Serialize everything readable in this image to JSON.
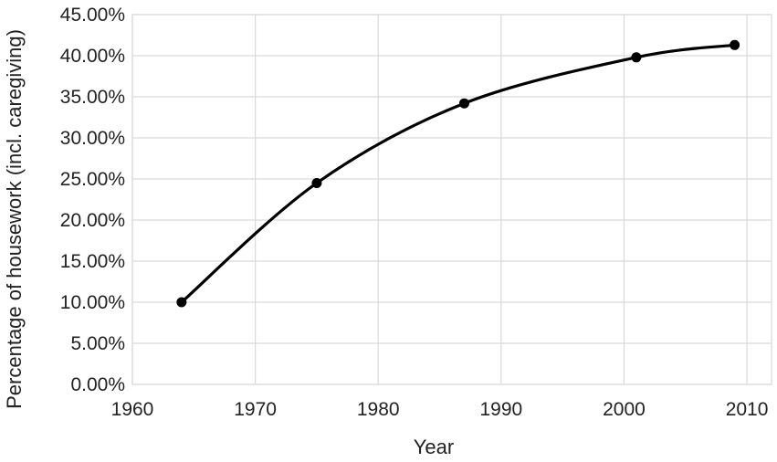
{
  "chart_data": {
    "type": "line",
    "xlabel": "Year",
    "ylabel": "Percentage of housework (incl. caregiving)",
    "xlim": [
      1960,
      2012
    ],
    "ylim": [
      0,
      45
    ],
    "x_ticks": [
      "1960",
      "1970",
      "1980",
      "1990",
      "2000",
      "2010"
    ],
    "y_ticks": [
      "0.00%",
      "5.00%",
      "10.00%",
      "15.00%",
      "20.00%",
      "25.00%",
      "30.00%",
      "35.00%",
      "40.00%",
      "45.00%"
    ],
    "grid": true,
    "smooth": true,
    "series": [
      {
        "color": "#000000",
        "x": [
          1964,
          1975,
          1987,
          2001,
          2009
        ],
        "y": [
          10.0,
          24.5,
          34.2,
          39.8,
          41.3
        ]
      }
    ]
  }
}
